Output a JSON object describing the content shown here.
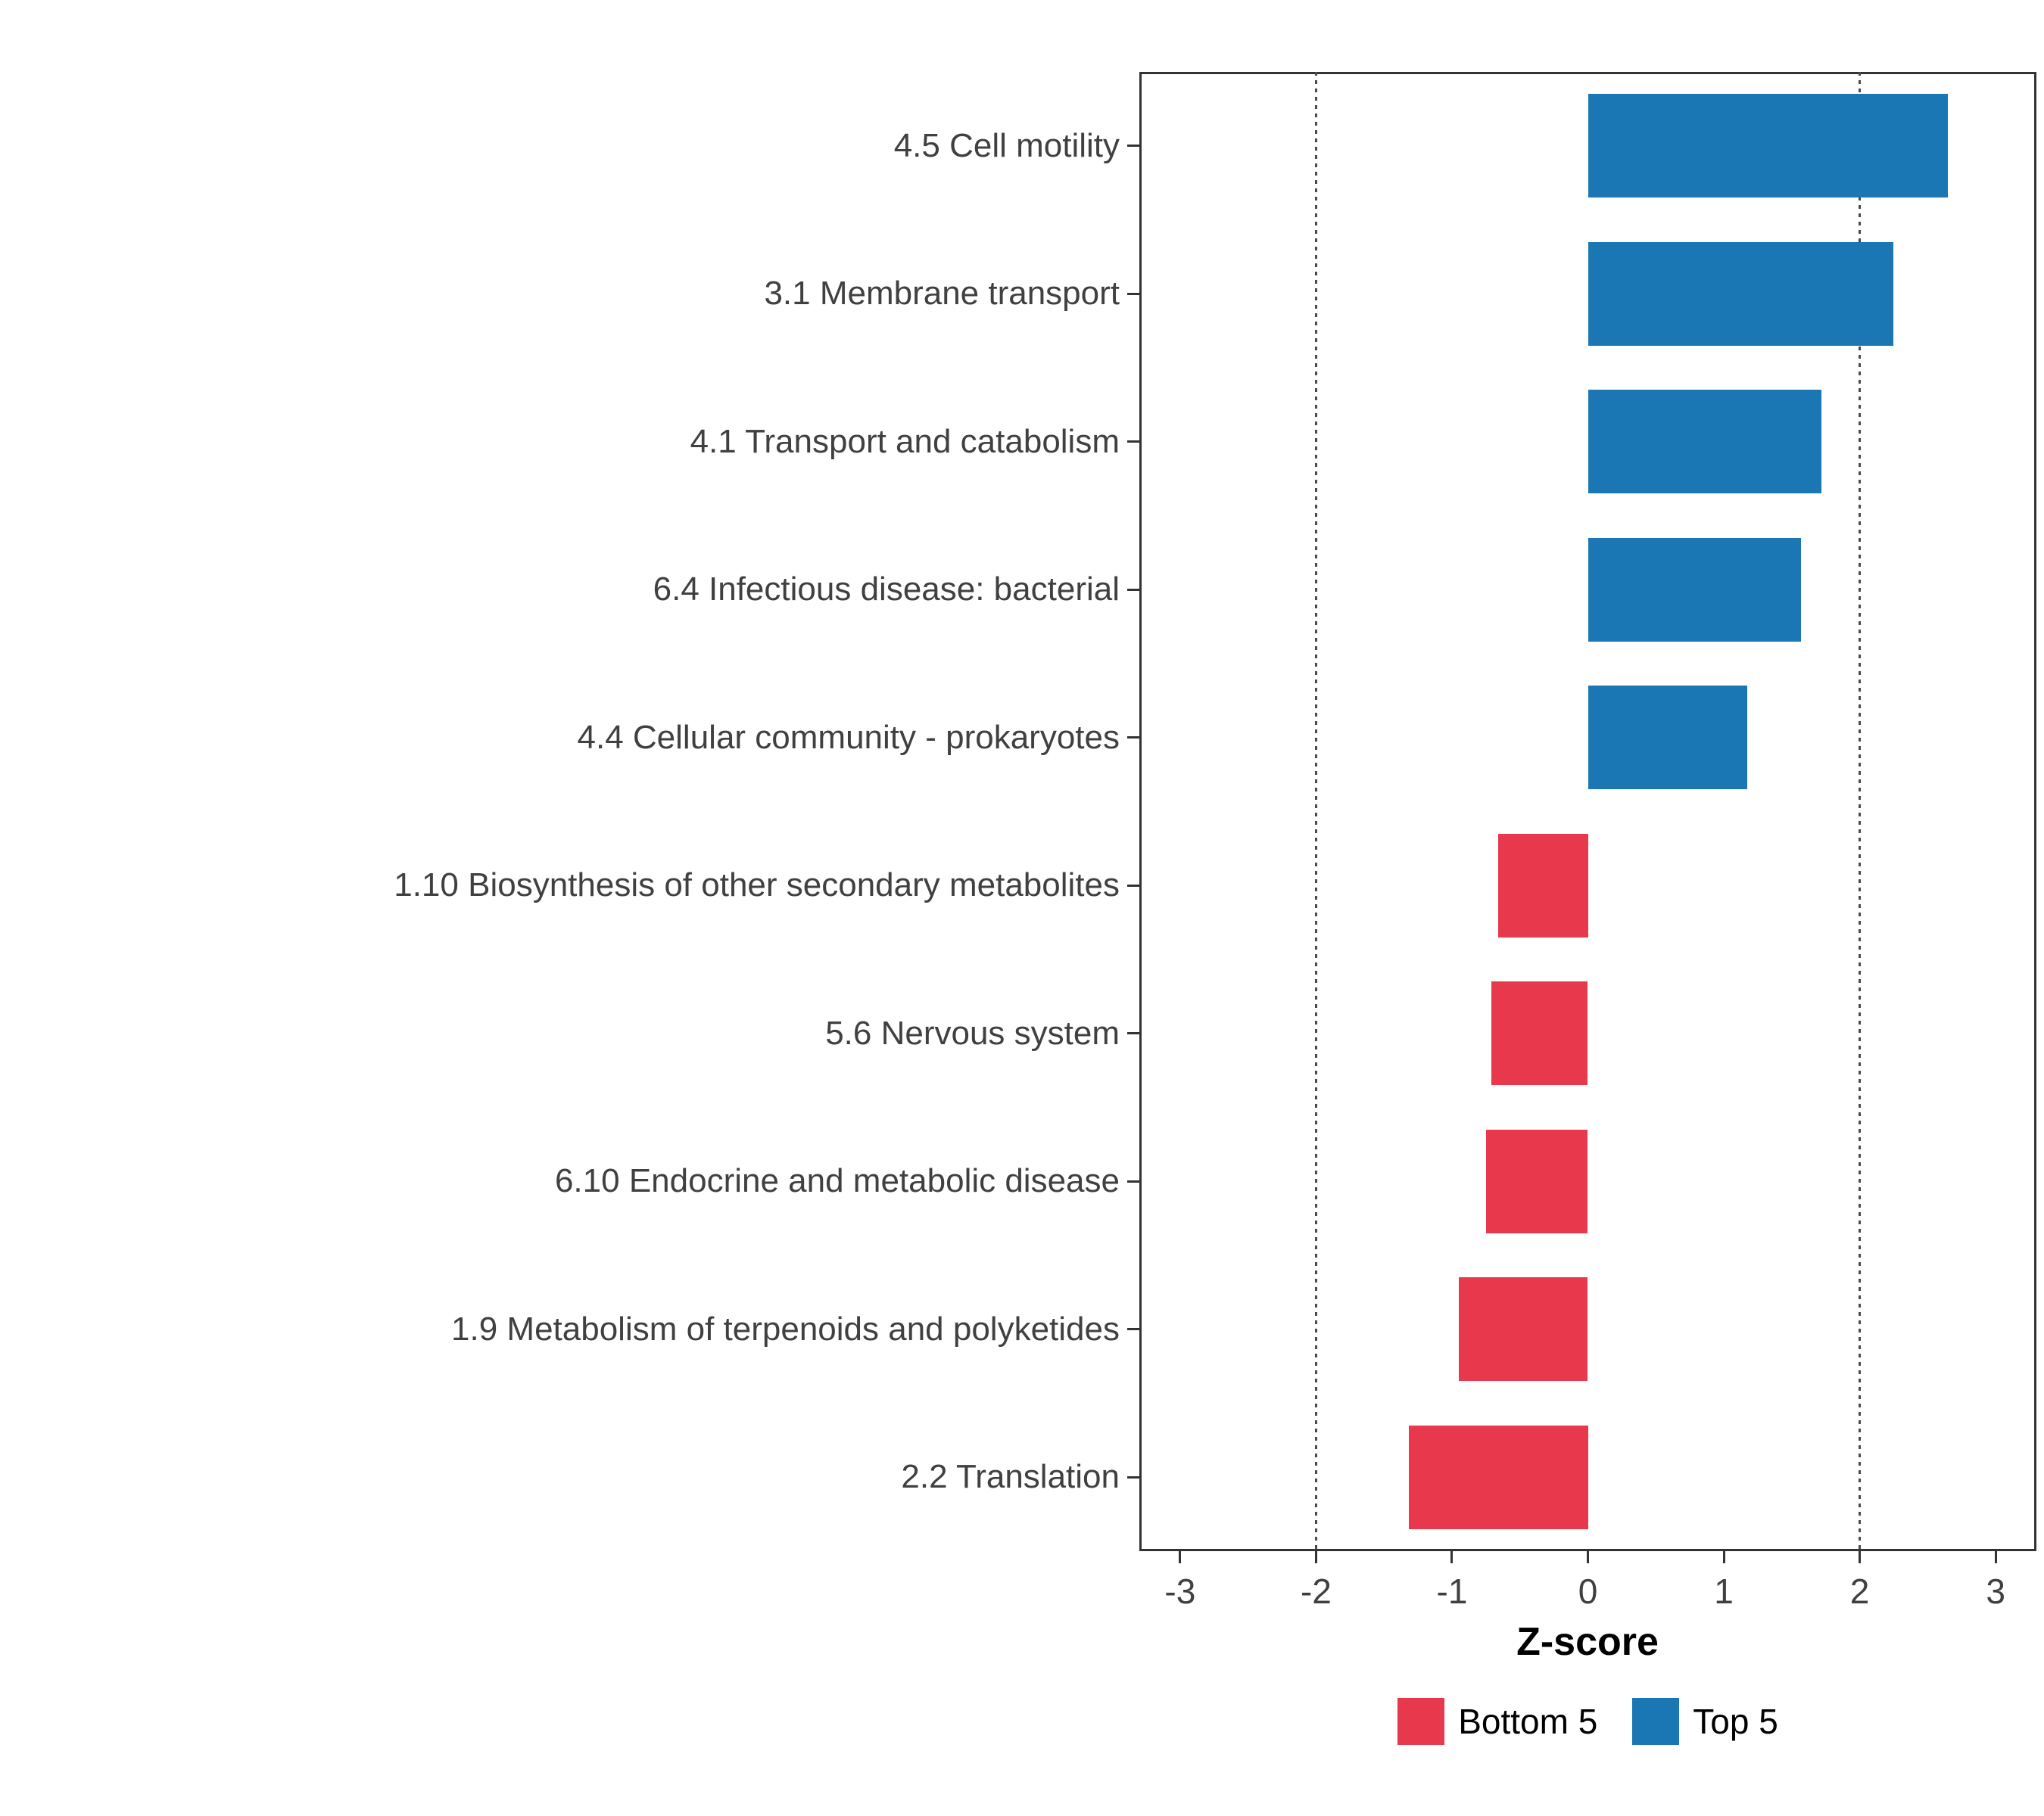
{
  "chart_data": {
    "type": "bar",
    "orientation": "horizontal",
    "title": "",
    "xlabel": "Z-score",
    "ylabel": "",
    "xlim": [
      -3.3,
      3.3
    ],
    "x_ticks": [
      -3,
      -2,
      -1,
      0,
      1,
      2,
      3
    ],
    "reference_lines": [
      -2,
      2
    ],
    "grid": "off",
    "categories": [
      "4.5 Cell motility",
      "3.1 Membrane transport",
      "4.1 Transport and catabolism",
      "6.4 Infectious disease: bacterial",
      "4.4 Cellular community - prokaryotes",
      "1.10 Biosynthesis of other secondary metabolites",
      "5.6 Nervous system",
      "6.10 Endocrine and metabolic disease",
      "1.9 Metabolism of terpenoids and polyketides",
      "2.2 Translation"
    ],
    "values": [
      2.65,
      2.25,
      1.72,
      1.57,
      1.17,
      -0.66,
      -0.71,
      -0.75,
      -0.95,
      -1.32
    ],
    "groups": [
      "Top 5",
      "Top 5",
      "Top 5",
      "Top 5",
      "Top 5",
      "Bottom 5",
      "Bottom 5",
      "Bottom 5",
      "Bottom 5",
      "Bottom 5"
    ],
    "colors": {
      "Top 5": "#1B76B4",
      "Bottom 5": "#E8394C"
    },
    "legend": {
      "position": "bottom",
      "entries": [
        {
          "label": "Bottom 5",
          "color": "#E8394C"
        },
        {
          "label": "Top 5",
          "color": "#1B76B4"
        }
      ]
    }
  }
}
